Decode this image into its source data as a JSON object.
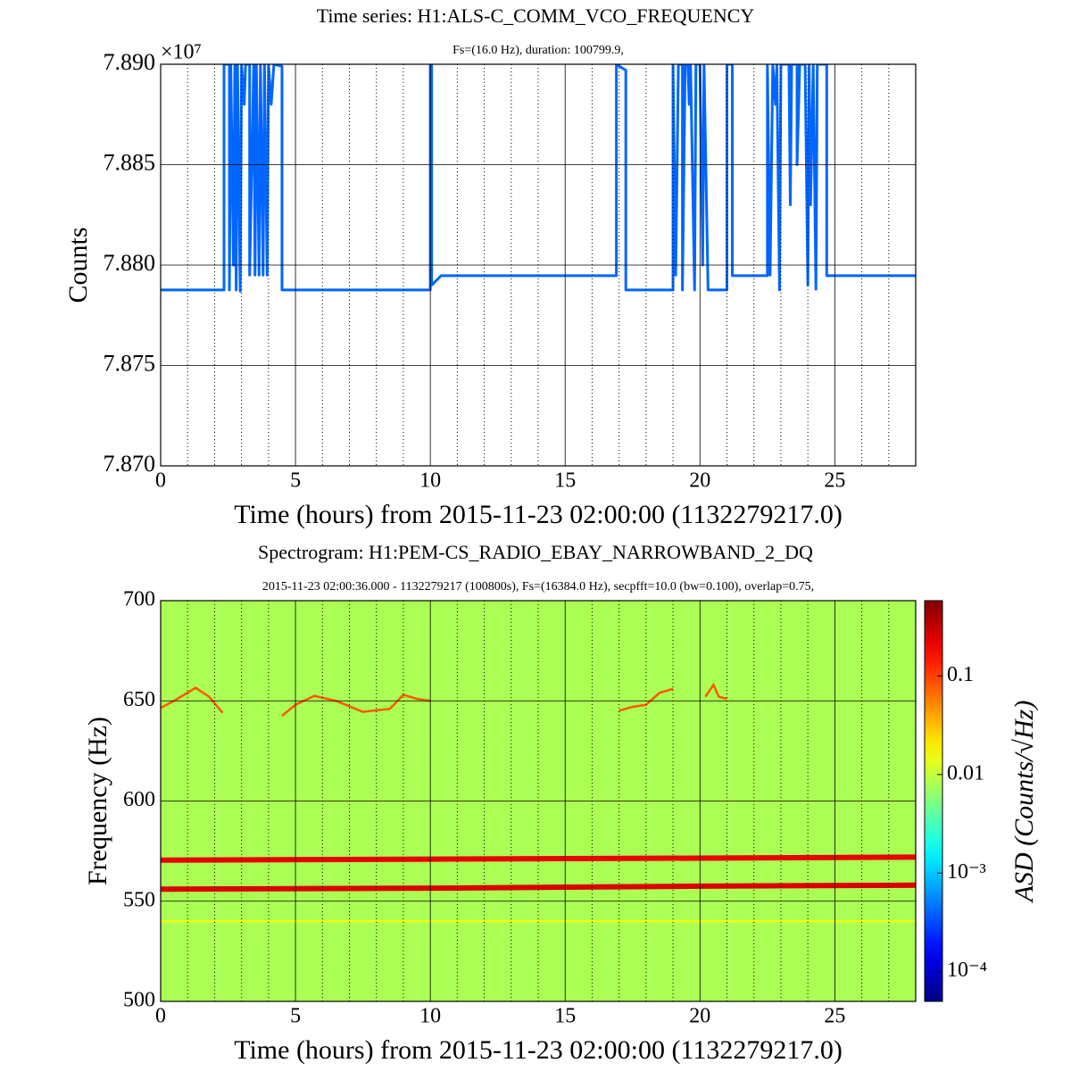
{
  "chart_data": [
    {
      "type": "line",
      "title": "Time series:  H1:ALS-C_COMM_VCO_FREQUENCY",
      "subtitle": "Fs=(16.0 Hz), duration: 100799.9,",
      "xlabel": "Time (hours) from 2015-11-23 02:00:00 (1132279217.0)",
      "ylabel": "Counts",
      "y_offset_label": "×10⁷",
      "color": "#0066ff",
      "xlim": [
        0,
        28
      ],
      "xticks": [
        0,
        5,
        10,
        15,
        20,
        25
      ],
      "xminor": [
        1,
        2,
        3,
        4,
        6,
        7,
        8,
        9,
        11,
        12,
        13,
        14,
        16,
        17,
        18,
        19,
        21,
        22,
        23,
        24,
        26,
        27
      ],
      "ylim": [
        78700000,
        78900000
      ],
      "yticks": [
        {
          "value": 78700000,
          "label": "7.870"
        },
        {
          "value": 78750000,
          "label": "7.875"
        },
        {
          "value": 78800000,
          "label": "7.880"
        },
        {
          "value": 78850000,
          "label": "7.885"
        },
        {
          "value": 78900000,
          "label": "7.890"
        }
      ],
      "grid": true,
      "x": [
        0,
        2.35,
        2.35,
        2.55,
        2.55,
        2.6,
        2.7,
        2.75,
        2.8,
        2.85,
        2.95,
        3.0,
        3.1,
        3.15,
        3.3,
        3.3,
        3.45,
        3.5,
        3.55,
        3.65,
        3.7,
        3.8,
        3.85,
        3.95,
        4.0,
        4.1,
        4.2,
        4.5,
        4.5,
        10.0,
        10.0,
        10.05,
        10.05,
        10.4,
        16.9,
        16.9,
        17.25,
        17.25,
        19.0,
        19.0,
        19.1,
        19.2,
        19.35,
        19.35,
        19.45,
        19.55,
        19.6,
        19.65,
        19.8,
        19.85,
        20.0,
        20.1,
        20.15,
        20.3,
        21.0,
        21.0,
        21.2,
        21.2,
        22.5,
        22.5,
        22.6,
        22.7,
        22.8,
        22.85,
        22.95,
        23.0,
        23.3,
        23.35,
        23.4,
        23.6,
        23.6,
        23.7,
        23.9,
        24.0,
        24.05,
        24.1,
        24.2,
        24.3,
        24.35,
        24.7,
        24.7,
        28
      ],
      "values": [
        78787600,
        78787600,
        78900000,
        78900000,
        78787600,
        78900000,
        78800000,
        78900000,
        78787600,
        78900000,
        78787000,
        78900000,
        78880000,
        78900000,
        78900000,
        78795000,
        78900000,
        78795000,
        78900000,
        78795000,
        78900000,
        78795000,
        78900000,
        78795000,
        78900000,
        78880000,
        78900000,
        78899000,
        78787600,
        78787600,
        78900000,
        78900000,
        78790000,
        78794700,
        78794700,
        78900000,
        78897000,
        78787600,
        78787600,
        78900000,
        78795000,
        78900000,
        78900000,
        78787600,
        78900000,
        78900000,
        78880000,
        78900000,
        78787600,
        78900000,
        78900000,
        78800000,
        78900000,
        78787600,
        78787600,
        78900000,
        78900000,
        78794700,
        78794700,
        78900000,
        78795000,
        78900000,
        78880000,
        78900000,
        78787600,
        78900000,
        78900000,
        78830000,
        78900000,
        78900000,
        78850000,
        78900000,
        78900000,
        78790000,
        78900000,
        78830000,
        78900000,
        78788000,
        78900000,
        78900000,
        78794700,
        78794700
      ]
    },
    {
      "type": "spectrogram",
      "title": "Spectrogram:  H1:PEM-CS_RADIO_EBAY_NARROWBAND_2_DQ",
      "subtitle": "2015-11-23  02:00:36.000 - 1132279217  (100800s), Fs=(16384.0 Hz), secpfft=10.0 (bw=0.100), overlap=0.75,",
      "xlabel": "Time (hours) from 2015-11-23 02:00:00 (1132279217.0)",
      "ylabel": "Frequency (Hz)",
      "colorbar_label": "ASD (Counts/√Hz)",
      "colormap": "jet",
      "xlim": [
        0,
        28
      ],
      "xticks": [
        0,
        5,
        10,
        15,
        20,
        25
      ],
      "xminor": [
        1,
        2,
        3,
        4,
        6,
        7,
        8,
        9,
        11,
        12,
        13,
        14,
        16,
        17,
        18,
        19,
        21,
        22,
        23,
        24,
        26,
        27
      ],
      "ylim": [
        500,
        700
      ],
      "yticks": [
        500,
        550,
        600,
        650,
        700
      ],
      "clim": [
        5e-05,
        0.58
      ],
      "clog": true,
      "cticks": [
        {
          "value": 0.0001,
          "label": "10⁻⁴"
        },
        {
          "value": 0.001,
          "label": "10⁻³"
        },
        0.01,
        0.1
      ],
      "grid": true,
      "background": 0.008,
      "tracks": [
        {
          "x": [
            0,
            28
          ],
          "freqs": [
            540,
            540
          ],
          "value": 0.015
        },
        {
          "x": [
            0,
            10,
            20,
            28
          ],
          "freqs": [
            556,
            556.5,
            557.5,
            558
          ],
          "value": 0.25
        },
        {
          "x": [
            0,
            10,
            20,
            28
          ],
          "freqs": [
            570.5,
            571,
            571.5,
            572
          ],
          "value": 0.22
        },
        {
          "x": [
            0,
            0.5,
            1.3,
            1.8,
            2.3
          ],
          "freqs": [
            646.5,
            650,
            656.5,
            652,
            644
          ],
          "value": 0.08
        },
        {
          "x": [
            4.5,
            5.0,
            5.7,
            6.5,
            7.5,
            8.5,
            9.0,
            9.5,
            10.0
          ],
          "freqs": [
            642.5,
            648,
            652.5,
            650,
            644.5,
            646,
            653,
            651,
            650
          ],
          "value": 0.08
        },
        {
          "x": [
            17.0,
            17.5,
            18.0,
            18.5,
            19.0
          ],
          "freqs": [
            645,
            647,
            648,
            654,
            656
          ],
          "value": 0.08
        },
        {
          "x": [
            20.2,
            20.5,
            20.7,
            21.0
          ],
          "freqs": [
            652,
            658,
            652,
            651
          ],
          "value": 0.08
        }
      ]
    }
  ]
}
